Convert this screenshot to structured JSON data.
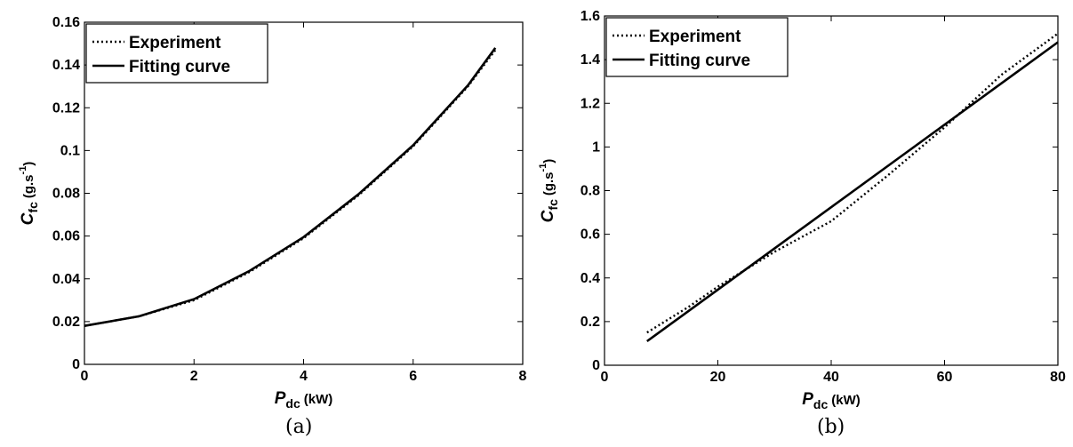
{
  "chart_data": [
    {
      "type": "line",
      "caption": "(a)",
      "xlabel": {
        "symbol": "P",
        "subscript": "dc",
        "unit": "(kW)"
      },
      "ylabel": {
        "symbol": "C",
        "subscript": "fc",
        "unit": "(g.s",
        "superscript": "-1",
        "close": ")"
      },
      "xlim": [
        0,
        8
      ],
      "ylim": [
        0,
        0.16
      ],
      "xticks": [
        "0",
        "2",
        "4",
        "6",
        "8"
      ],
      "yticks": [
        "0",
        "0.02",
        "0.04",
        "0.06",
        "0.08",
        "0.1",
        "0.12",
        "0.14",
        "0.16"
      ],
      "legend_position": "top-left",
      "series": [
        {
          "name": "Experiment",
          "style": "dotted",
          "x": [
            0,
            1,
            2,
            3,
            4,
            5,
            6,
            7,
            7.5
          ],
          "y": [
            0.018,
            0.0225,
            0.03,
            0.043,
            0.059,
            0.079,
            0.102,
            0.13,
            0.147
          ]
        },
        {
          "name": "Fitting curve",
          "style": "solid",
          "x": [
            0,
            1,
            2,
            3,
            4,
            5,
            6,
            7,
            7.5
          ],
          "y": [
            0.018,
            0.0225,
            0.0305,
            0.0435,
            0.0595,
            0.0795,
            0.1025,
            0.1305,
            0.148
          ]
        }
      ]
    },
    {
      "type": "line",
      "caption": "(b)",
      "xlabel": {
        "symbol": "P",
        "subscript": "dc",
        "unit": "(kW)"
      },
      "ylabel": {
        "symbol": "C",
        "subscript": "fc",
        "unit": "(g.s",
        "superscript": "-1",
        "close": ")"
      },
      "xlim": [
        0,
        80
      ],
      "ylim": [
        0,
        1.6
      ],
      "xticks": [
        "0",
        "20",
        "40",
        "60",
        "80"
      ],
      "yticks": [
        "0",
        "0.2",
        "0.4",
        "0.6",
        "0.8",
        "1",
        "1.2",
        "1.4",
        "1.6"
      ],
      "legend_position": "top-left",
      "series": [
        {
          "name": "Experiment",
          "style": "dotted",
          "x": [
            7.5,
            15,
            20,
            30,
            40,
            50,
            60,
            70,
            80
          ],
          "y": [
            0.15,
            0.27,
            0.36,
            0.52,
            0.66,
            0.87,
            1.09,
            1.33,
            1.52
          ]
        },
        {
          "name": "Fitting curve",
          "style": "solid",
          "x": [
            7.5,
            80
          ],
          "y": [
            0.11,
            1.48
          ]
        }
      ]
    }
  ]
}
